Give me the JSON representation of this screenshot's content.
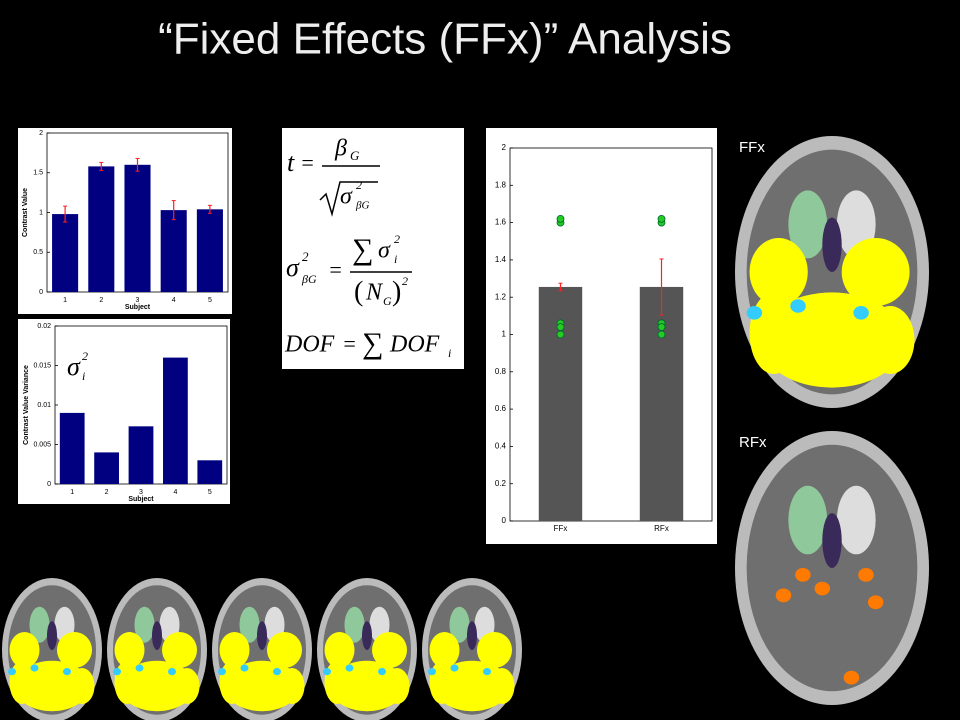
{
  "title": "“Fixed Effects (FFx)” Analysis",
  "chart_data": [
    {
      "type": "bar",
      "categories": [
        "1",
        "2",
        "3",
        "4",
        "5"
      ],
      "values": [
        0.98,
        1.58,
        1.6,
        1.03,
        1.04
      ],
      "errors": [
        0.1,
        0.05,
        0.08,
        0.12,
        0.05
      ],
      "error_color": "#ff2020",
      "color": "#000080",
      "ylim": [
        0,
        2
      ],
      "yticks": [
        0,
        0.5,
        1,
        1.5,
        2
      ],
      "xlabel": "Subject",
      "ylabel": "Contrast Value"
    },
    {
      "type": "bar",
      "categories": [
        "1",
        "2",
        "3",
        "4",
        "5"
      ],
      "values": [
        0.009,
        0.004,
        0.0073,
        0.016,
        0.003
      ],
      "color": "#000080",
      "ylim": [
        0,
        0.02
      ],
      "yticks": [
        0,
        0.005,
        0.01,
        0.015,
        0.02
      ],
      "xlabel": "Subject",
      "ylabel": "Contrast Value Variance",
      "annotation": {
        "symbol": "σ",
        "sub": "i",
        "sup": "2"
      }
    },
    {
      "type": "bar",
      "categories": [
        "FFx",
        "RFx"
      ],
      "values": [
        1.255,
        1.255
      ],
      "errors": [
        0.02,
        0.15
      ],
      "error_color": "#ff2020",
      "color": "#555555",
      "points": [
        [
          1.6,
          1.62,
          1.06,
          1.04,
          1.0
        ],
        [
          1.6,
          1.62,
          1.06,
          1.04,
          1.0
        ]
      ],
      "point_color": "#22cc22",
      "ylim": [
        0,
        2
      ],
      "yticks": [
        0,
        0.2,
        0.4,
        0.6,
        0.8,
        1,
        1.2,
        1.4,
        1.6,
        1.8,
        2
      ]
    }
  ],
  "equations": {
    "t": "t",
    "eq": "=",
    "beta": "β",
    "G": "G",
    "sigma": "σ",
    "two": "2",
    "betaG": "βG",
    "sum": "∑",
    "i": "i",
    "N": "N",
    "DOF": "DOF"
  },
  "images": {
    "ffx": "FFx",
    "rfx": "RFx"
  }
}
